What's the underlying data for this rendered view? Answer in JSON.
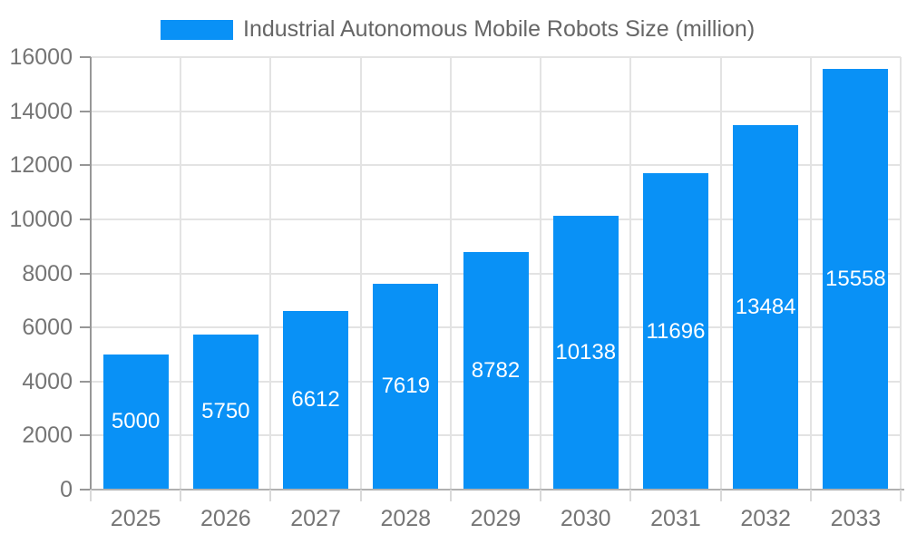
{
  "chart_data": {
    "type": "bar",
    "title": "",
    "legend": "Industrial Autonomous Mobile Robots Size (million)",
    "legend_position": "top-center",
    "categories": [
      "2025",
      "2026",
      "2027",
      "2028",
      "2029",
      "2030",
      "2031",
      "2032",
      "2033"
    ],
    "values": [
      5000,
      5750,
      6612,
      7619,
      8782,
      10138,
      11696,
      13484,
      15558
    ],
    "value_labels_shown": true,
    "xlabel": "",
    "ylabel": "",
    "ylim": [
      0,
      16000
    ],
    "yticks": [
      0,
      2000,
      4000,
      6000,
      8000,
      10000,
      12000,
      14000,
      16000
    ],
    "grid": true,
    "colors": {
      "bar": "#0991f6",
      "grid_line": "#e3e3e3",
      "y_axis_line": "#979797",
      "x_axis_line": "#b0b0b0",
      "x_tick_mark": "#d9d9d9",
      "y_tick_mark": "#979797",
      "tick_label_text": "#757575",
      "legend_text": "#666666",
      "value_label_text": "#ffffff",
      "background": "#ffffff"
    }
  }
}
